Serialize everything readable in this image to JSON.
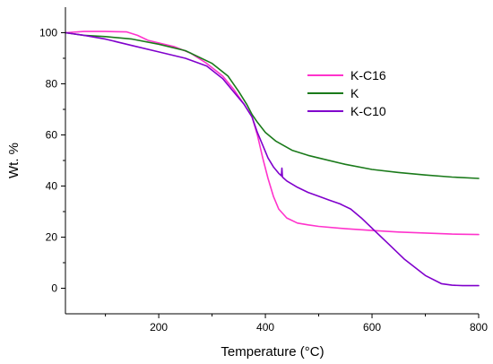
{
  "chart_data": {
    "type": "line",
    "xlabel": "Temperature (°C)",
    "ylabel": "Wt. %",
    "xlim": [
      25,
      800
    ],
    "ylim": [
      -10,
      110
    ],
    "xticks": [
      200,
      400,
      600,
      800
    ],
    "yticks": [
      0,
      20,
      40,
      60,
      80,
      100
    ],
    "grid": false,
    "legend_position": "top-right",
    "series": [
      {
        "name": "K-C16",
        "color": "#ff33cc",
        "x": [
          25,
          60,
          100,
          140,
          160,
          180,
          200,
          230,
          260,
          290,
          320,
          340,
          360,
          375,
          385,
          395,
          405,
          415,
          425,
          440,
          460,
          480,
          500,
          550,
          600,
          650,
          700,
          750,
          800
        ],
        "y": [
          100,
          100.5,
          100.5,
          100.3,
          99,
          97,
          96,
          94.5,
          92,
          88,
          83,
          78,
          72,
          67,
          60,
          51,
          43,
          36,
          31,
          27.5,
          25.5,
          24.8,
          24.2,
          23.3,
          22.6,
          22,
          21.6,
          21.2,
          21
        ]
      },
      {
        "name": "K",
        "color": "#1a7a1a",
        "x": [
          25,
          60,
          100,
          150,
          200,
          250,
          300,
          330,
          350,
          365,
          375,
          385,
          400,
          420,
          450,
          480,
          500,
          550,
          600,
          650,
          700,
          750,
          800
        ],
        "y": [
          100,
          99,
          98.5,
          97.5,
          95.5,
          93,
          88,
          83,
          77,
          72,
          68,
          65,
          61,
          57.5,
          54,
          52,
          51,
          48.5,
          46.5,
          45.3,
          44.3,
          43.5,
          43
        ]
      },
      {
        "name": "K-C10",
        "color": "#8000cc",
        "x": [
          25,
          60,
          100,
          150,
          200,
          250,
          290,
          320,
          340,
          360,
          375,
          385,
          395,
          405,
          415,
          425,
          430,
          431,
          432,
          440,
          460,
          480,
          500,
          520,
          540,
          560,
          580,
          600,
          630,
          660,
          700,
          730,
          750,
          770,
          800
        ],
        "y": [
          100,
          99,
          97.5,
          95,
          92.5,
          90,
          87,
          82,
          77,
          72,
          67,
          61,
          56,
          51,
          47.5,
          45,
          44,
          47,
          43.5,
          42,
          39.5,
          37.5,
          36,
          34.5,
          33,
          31,
          27.5,
          23.5,
          17.5,
          11.5,
          5,
          1.8,
          1.2,
          1,
          1
        ]
      }
    ]
  }
}
